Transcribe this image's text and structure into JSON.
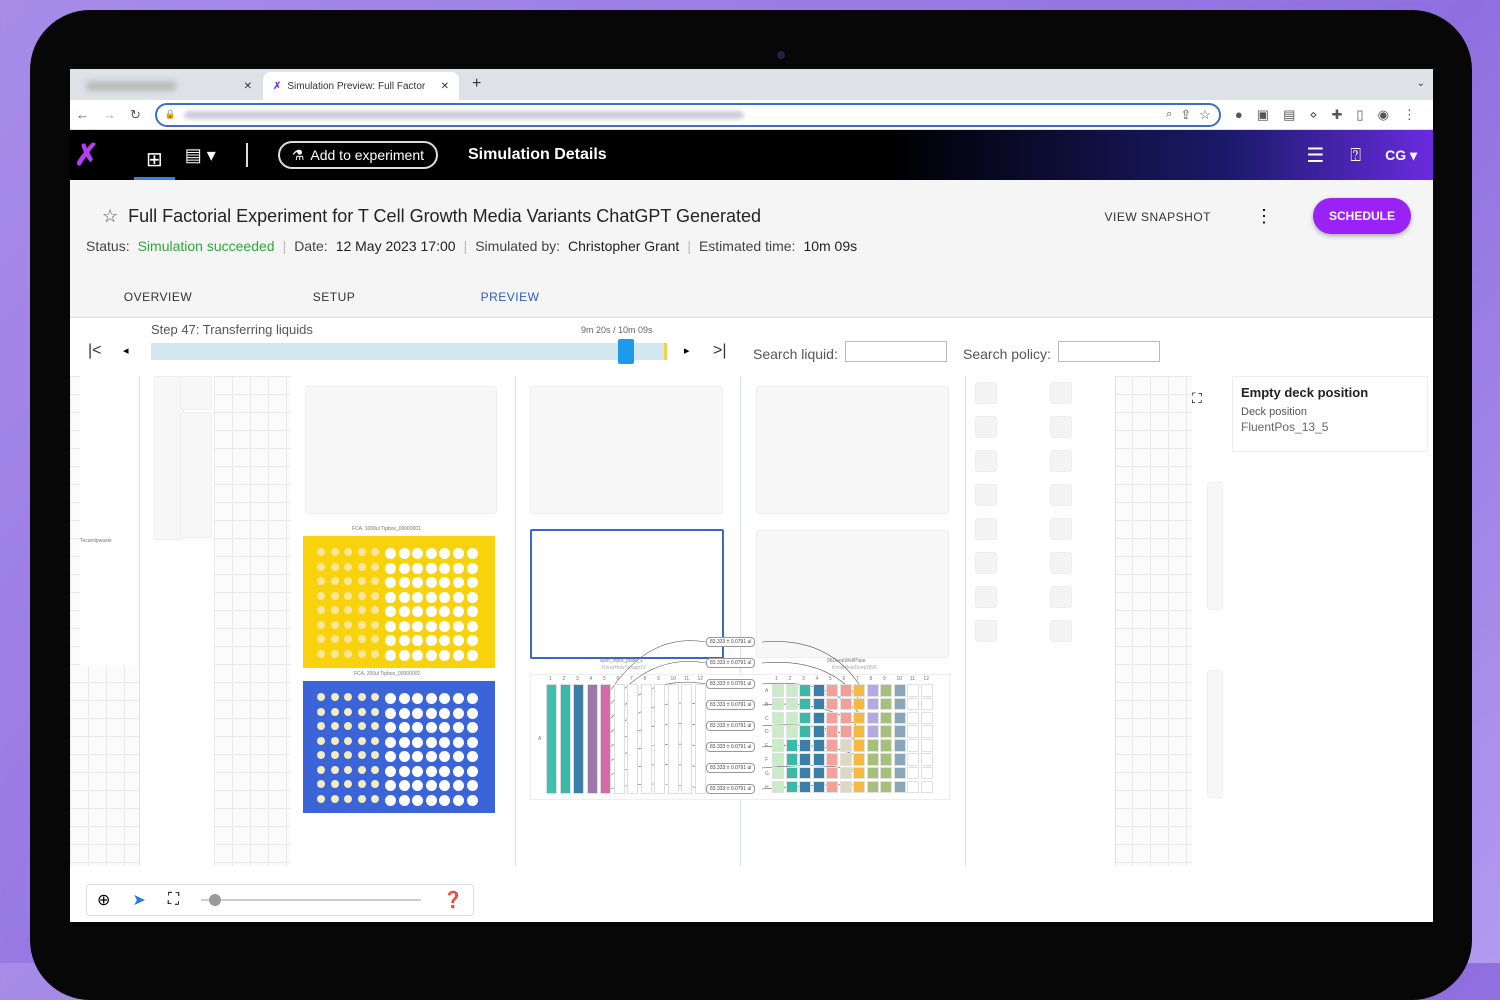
{
  "browser": {
    "tabs": [
      {
        "label": "blurred tab"
      },
      {
        "label": "Simulation Preview: Full Factor"
      }
    ],
    "new_tab": "+"
  },
  "appbar": {
    "add_button": "Add to experiment",
    "page_title": "Simulation Details",
    "user_initials": "CG"
  },
  "header": {
    "title": "Full Factorial Experiment for T Cell Growth Media Variants ChatGPT Generated",
    "status_label": "Status:",
    "status_value": "Simulation succeeded",
    "date_label": "Date:",
    "date_value": "12 May 2023 17:00",
    "simulated_label": "Simulated by:",
    "simulated_value": "Christopher Grant",
    "estimate_label": "Estimated time:",
    "estimate_value": "10m 09s",
    "view_snapshot": "VIEW SNAPSHOT",
    "schedule": "SCHEDULE",
    "status_color": "#2eaa3a",
    "accent": "#9b22f5"
  },
  "tabs": [
    {
      "label": "OVERVIEW"
    },
    {
      "label": "SETUP"
    },
    {
      "label": "PREVIEW",
      "active": true
    }
  ],
  "player": {
    "step": "Step 47: Transferring liquids",
    "time": "9m 20s / 10m 09s",
    "progress": 0.92,
    "search_liquid_label": "Search liquid:",
    "search_liquid_value": "",
    "search_policy_label": "Search policy:",
    "search_policy_value": ""
  },
  "deck": {
    "waste_label": "Tecantipwaste",
    "tipbox1": "FCA, 1000ul Tipbox_00000001",
    "tipbox2": "FCA, 200ul Tipbox_00000002",
    "source_plate": "auto_input_plate_1",
    "source_type": "KnowHowTrough12",
    "dest_plate": "96DeepWellPlate",
    "dest_type": "KnowHowDeepW96",
    "transfer_volume": "83.333 ± 0.0791 ul",
    "row_labels": [
      "A",
      "B",
      "C",
      "D",
      "E",
      "F",
      "G",
      "H"
    ],
    "columns": [
      "1",
      "2",
      "3",
      "4",
      "5",
      "6",
      "7",
      "8",
      "9",
      "10",
      "11",
      "12"
    ],
    "source_row": "A"
  },
  "info_panel": {
    "title": "Empty deck position",
    "subtitle": "Deck position",
    "value": "FluentPos_13_5"
  }
}
